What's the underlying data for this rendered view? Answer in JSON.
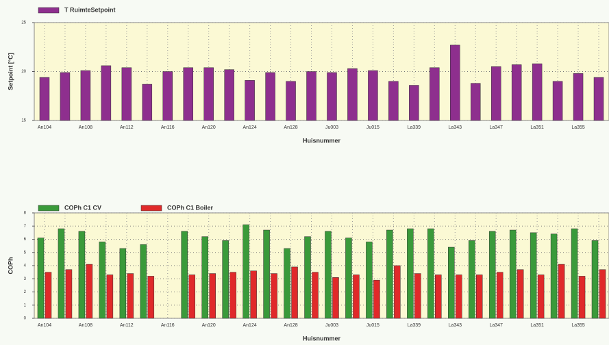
{
  "chart_data": [
    {
      "type": "bar",
      "x_label": "Huisnummer",
      "y_label": "Setpoint [°C]",
      "categories": [
        "An104",
        null,
        "An108",
        null,
        "An112",
        null,
        "An116",
        null,
        "An120",
        null,
        "An124",
        null,
        "An128",
        null,
        "Ju003",
        null,
        "Ju015",
        null,
        "La339",
        null,
        "La343",
        null,
        "La347",
        null,
        "La351",
        null,
        "La355",
        null
      ],
      "series": [
        {
          "name": "T RuimteSetpoint",
          "color": "#8e2f8e",
          "values": [
            19.4,
            19.9,
            20.1,
            20.6,
            20.4,
            18.7,
            20.0,
            20.4,
            20.4,
            20.2,
            19.1,
            19.9,
            19.0,
            20.0,
            19.9,
            20.3,
            20.1,
            19.0,
            18.6,
            20.4,
            22.7,
            18.8,
            20.5,
            20.7,
            20.8,
            19.0,
            19.8,
            19.4
          ]
        }
      ],
      "ylim": [
        15,
        25
      ],
      "yticks": [
        15,
        20,
        25
      ],
      "grid": true
    },
    {
      "type": "bar",
      "x_label": "Huisnummer",
      "y_label": "COPh",
      "categories": [
        "An104",
        null,
        "An108",
        null,
        "An112",
        null,
        "An116",
        null,
        "An120",
        null,
        "An124",
        null,
        "An128",
        null,
        "Ju003",
        null,
        "Ju015",
        null,
        "La339",
        null,
        "La343",
        null,
        "La347",
        null,
        "La351",
        null,
        "La355",
        null
      ],
      "series": [
        {
          "name": "COPh C1 CV",
          "color": "#3a9a3a",
          "values": [
            6.1,
            6.8,
            6.6,
            5.8,
            5.3,
            5.6,
            null,
            6.6,
            6.2,
            5.9,
            7.1,
            6.7,
            5.3,
            6.2,
            6.6,
            6.1,
            5.8,
            6.7,
            6.8,
            6.8,
            5.4,
            5.9,
            6.6,
            6.7,
            6.5,
            6.4,
            6.8,
            5.9
          ]
        },
        {
          "name": "COPh C1 Boiler",
          "color": "#e02a2a",
          "values": [
            3.5,
            3.7,
            4.1,
            3.3,
            3.4,
            3.2,
            null,
            3.3,
            3.4,
            3.5,
            3.6,
            3.4,
            3.9,
            3.5,
            3.1,
            3.3,
            2.9,
            4.0,
            3.4,
            3.3,
            3.3,
            3.3,
            3.5,
            3.7,
            3.3,
            4.1,
            3.2,
            3.7
          ]
        }
      ],
      "ylim": [
        0,
        8
      ],
      "yticks": [
        0,
        1,
        2,
        3,
        4,
        5,
        6,
        7,
        8
      ],
      "grid": true
    }
  ]
}
